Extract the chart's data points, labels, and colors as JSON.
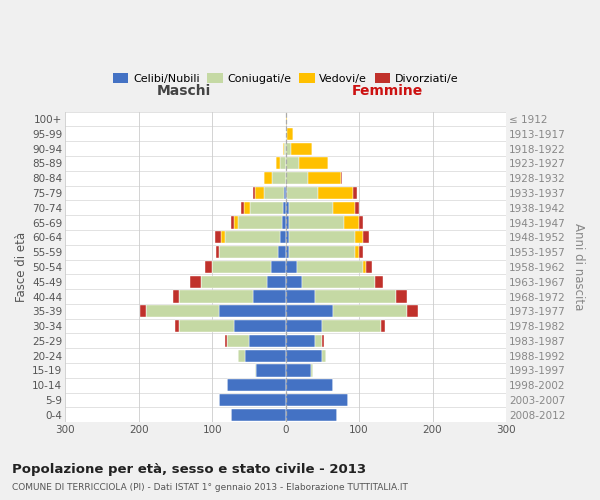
{
  "age_groups": [
    "0-4",
    "5-9",
    "10-14",
    "15-19",
    "20-24",
    "25-29",
    "30-34",
    "35-39",
    "40-44",
    "45-49",
    "50-54",
    "55-59",
    "60-64",
    "65-69",
    "70-74",
    "75-79",
    "80-84",
    "85-89",
    "90-94",
    "95-99",
    "100+"
  ],
  "birth_years": [
    "2008-2012",
    "2003-2007",
    "1998-2002",
    "1993-1997",
    "1988-1992",
    "1983-1987",
    "1978-1982",
    "1973-1977",
    "1968-1972",
    "1963-1967",
    "1958-1962",
    "1953-1957",
    "1948-1952",
    "1943-1947",
    "1938-1942",
    "1933-1937",
    "1928-1932",
    "1923-1927",
    "1918-1922",
    "1913-1917",
    "≤ 1912"
  ],
  "colors": {
    "celibi": "#4472c4",
    "coniugati": "#c5d9a4",
    "vedovi": "#ffc000",
    "divorziati": "#c0312b"
  },
  "maschi_celibi": [
    75,
    90,
    80,
    40,
    55,
    50,
    70,
    90,
    45,
    25,
    20,
    10,
    8,
    5,
    3,
    2,
    0,
    0,
    0,
    0,
    0
  ],
  "maschi_coniugati": [
    0,
    0,
    0,
    2,
    10,
    30,
    75,
    100,
    100,
    90,
    80,
    80,
    75,
    60,
    45,
    28,
    18,
    8,
    2,
    0,
    0
  ],
  "maschi_vedovi": [
    0,
    0,
    0,
    0,
    0,
    0,
    0,
    0,
    0,
    0,
    0,
    0,
    5,
    5,
    8,
    12,
    12,
    5,
    2,
    0,
    0
  ],
  "maschi_divorziati": [
    0,
    0,
    0,
    0,
    0,
    2,
    5,
    8,
    8,
    15,
    10,
    5,
    8,
    5,
    5,
    2,
    0,
    0,
    0,
    0,
    0
  ],
  "femmine_celibi": [
    70,
    85,
    65,
    35,
    50,
    40,
    50,
    65,
    40,
    22,
    15,
    5,
    5,
    5,
    5,
    2,
    0,
    0,
    0,
    0,
    0
  ],
  "femmine_coniugati": [
    0,
    0,
    0,
    2,
    5,
    10,
    80,
    100,
    110,
    100,
    90,
    90,
    90,
    75,
    60,
    42,
    30,
    18,
    8,
    2,
    0
  ],
  "femmine_vedovi": [
    0,
    0,
    0,
    0,
    0,
    0,
    0,
    0,
    0,
    0,
    5,
    5,
    10,
    20,
    30,
    48,
    45,
    40,
    28,
    8,
    2
  ],
  "femmine_divorziati": [
    0,
    0,
    0,
    0,
    0,
    2,
    5,
    15,
    15,
    10,
    8,
    5,
    8,
    5,
    5,
    5,
    2,
    0,
    0,
    0,
    0
  ],
  "xlim": 300,
  "title": "Popolazione per età, sesso e stato civile - 2013",
  "subtitle": "COMUNE DI TERRICCIOLA (PI) - Dati ISTAT 1° gennaio 2013 - Elaborazione TUTTITALIA.IT",
  "ylabel_left": "Fasce di età",
  "ylabel_right": "Anni di nascita",
  "xlabel_left": "Maschi",
  "xlabel_right": "Femmine",
  "bg_color": "#f0f0f0",
  "plot_bg_color": "#ffffff",
  "grid_color": "#cccccc",
  "legend_labels": [
    "Celibi/Nubili",
    "Coniugati/e",
    "Vedovi/e",
    "Divorziati/e"
  ]
}
